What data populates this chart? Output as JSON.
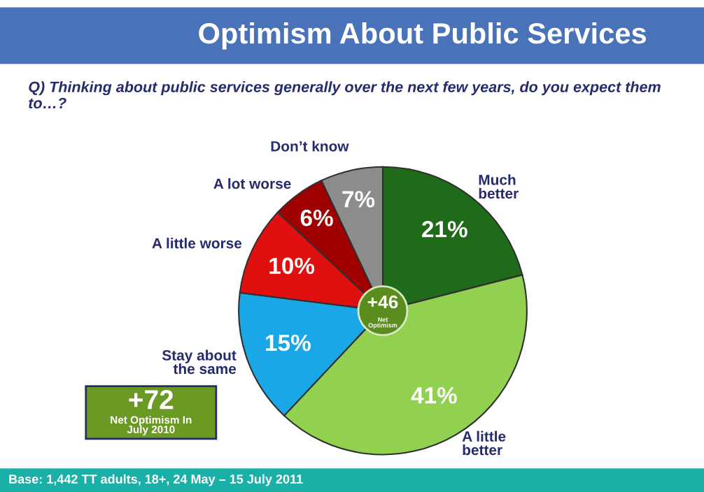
{
  "chart_data": {
    "type": "pie",
    "title": "Optimism About Public Services",
    "subtitle": "Q) Thinking about public services generally over the next few years, do you expect them to…?",
    "categories": [
      "Much better",
      "A little better",
      "Stay about the same",
      "A little worse",
      "A lot worse",
      "Don’t know"
    ],
    "values": [
      21,
      41,
      15,
      10,
      6,
      7
    ],
    "value_labels": [
      "21%",
      "41%",
      "15%",
      "10%",
      "6%",
      "7%"
    ],
    "colors": [
      "#1f6b1a",
      "#92d050",
      "#1aa7e8",
      "#e01010",
      "#a00000",
      "#8c8c8c"
    ],
    "annotations": [
      "+46",
      "Net Optimism",
      "+72",
      "Net Optimism In July 2010",
      "Base: 1,442 TT adults, 18+, 24 May – 15 July 2011"
    ],
    "legend": false
  }
}
